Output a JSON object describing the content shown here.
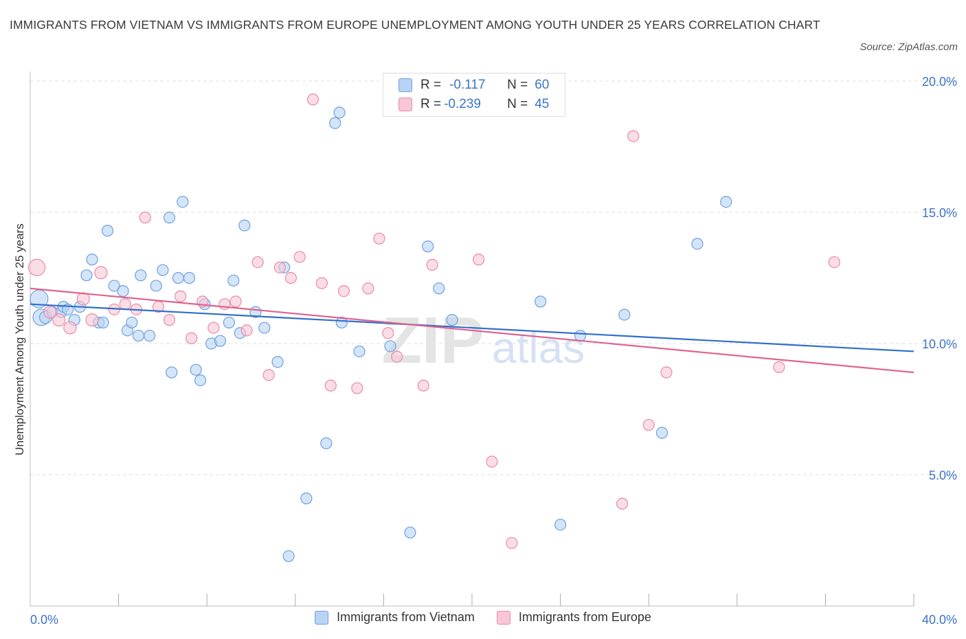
{
  "title": "IMMIGRANTS FROM VIETNAM VS IMMIGRANTS FROM EUROPE UNEMPLOYMENT AMONG YOUTH UNDER 25 YEARS CORRELATION CHART",
  "source": "Source: ZipAtlas.com",
  "watermark": {
    "zip": "ZIP",
    "atlas": "atlas"
  },
  "legend_top": [
    {
      "r_label": "R =",
      "r_value": "-0.117",
      "n_label": "N =",
      "n_value": "60"
    },
    {
      "r_label": "R =",
      "r_value": "-0.239",
      "n_label": "N =",
      "n_value": "45"
    }
  ],
  "colors": {
    "vietnam_fill": "#b8d3f5",
    "vietnam_stroke": "#6f9fdc",
    "vietnam_line": "#2f6fcc",
    "europe_fill": "#f8c6d6",
    "europe_stroke": "#e88aa8",
    "europe_line": "#e0628f",
    "axis_text": "#3b74c8",
    "grid": "#dddddd"
  },
  "chart_data": {
    "type": "scatter",
    "xlabel": "",
    "ylabel": "Unemployment Among Youth under 25 years",
    "xlim": [
      0,
      40
    ],
    "ylim": [
      0,
      20
    ],
    "x_tick_labels": [
      "0.0%",
      "40.0%"
    ],
    "y_ticks": [
      5,
      10,
      15,
      20
    ],
    "y_tick_labels": [
      "5.0%",
      "10.0%",
      "15.0%",
      "20.0%"
    ],
    "grid": true,
    "legend_position": "top-center",
    "series": [
      {
        "name": "Immigrants from Vietnam",
        "trend": {
          "x0": 0,
          "y0": 11.5,
          "x1": 40,
          "y1": 9.7
        },
        "points": [
          [
            0.4,
            11.7,
            13
          ],
          [
            0.5,
            11.0,
            12
          ],
          [
            0.7,
            11.0,
            9
          ],
          [
            1.0,
            11.2,
            8
          ],
          [
            1.4,
            11.2,
            8
          ],
          [
            1.5,
            11.4,
            8
          ],
          [
            2.0,
            10.9,
            8
          ],
          [
            2.25,
            11.4,
            8
          ],
          [
            2.55,
            12.6,
            8
          ],
          [
            2.8,
            13.2,
            8
          ],
          [
            3.1,
            10.8,
            8
          ],
          [
            3.3,
            10.8,
            8
          ],
          [
            3.5,
            14.3,
            8
          ],
          [
            3.8,
            12.2,
            8
          ],
          [
            4.2,
            12.0,
            8
          ],
          [
            4.4,
            10.5,
            8
          ],
          [
            4.6,
            10.8,
            8
          ],
          [
            4.9,
            10.3,
            8
          ],
          [
            5.0,
            12.6,
            8
          ],
          [
            5.4,
            10.3,
            8
          ],
          [
            5.7,
            12.2,
            8
          ],
          [
            6.0,
            12.8,
            8
          ],
          [
            6.3,
            14.8,
            8
          ],
          [
            6.4,
            8.9,
            8
          ],
          [
            6.7,
            12.5,
            8
          ],
          [
            6.9,
            15.4,
            8
          ],
          [
            7.2,
            12.5,
            8
          ],
          [
            7.5,
            9.0,
            8
          ],
          [
            7.7,
            8.6,
            8
          ],
          [
            7.9,
            11.5,
            8
          ],
          [
            8.2,
            10.0,
            8
          ],
          [
            8.6,
            10.1,
            8
          ],
          [
            9.0,
            10.8,
            8
          ],
          [
            9.2,
            12.4,
            8
          ],
          [
            9.5,
            10.4,
            8
          ],
          [
            9.7,
            14.5,
            8
          ],
          [
            10.2,
            11.2,
            8
          ],
          [
            10.6,
            10.6,
            8
          ],
          [
            11.2,
            9.3,
            8
          ],
          [
            11.5,
            12.9,
            8
          ],
          [
            11.7,
            1.9,
            8
          ],
          [
            12.5,
            4.1,
            8
          ],
          [
            13.4,
            6.2,
            8
          ],
          [
            13.8,
            18.4,
            8
          ],
          [
            14.0,
            18.8,
            8
          ],
          [
            14.1,
            10.8,
            8
          ],
          [
            14.9,
            9.7,
            8
          ],
          [
            16.3,
            9.9,
            8
          ],
          [
            17.2,
            2.8,
            8
          ],
          [
            18.0,
            13.7,
            8
          ],
          [
            18.5,
            12.1,
            8
          ],
          [
            19.1,
            10.9,
            8
          ],
          [
            23.1,
            11.6,
            8
          ],
          [
            24.0,
            3.1,
            8
          ],
          [
            24.9,
            10.3,
            8
          ],
          [
            26.9,
            11.1,
            8
          ],
          [
            28.6,
            6.6,
            8
          ],
          [
            30.2,
            13.8,
            8
          ],
          [
            31.5,
            15.4,
            8
          ],
          [
            1.7,
            11.3,
            8
          ]
        ]
      },
      {
        "name": "Immigrants from Europe",
        "trend": {
          "x0": 0,
          "y0": 12.1,
          "x1": 40,
          "y1": 8.9
        },
        "points": [
          [
            0.3,
            12.9,
            12
          ],
          [
            0.9,
            11.2,
            9
          ],
          [
            1.3,
            10.9,
            9
          ],
          [
            1.8,
            10.6,
            9
          ],
          [
            2.4,
            11.7,
            9
          ],
          [
            2.8,
            10.9,
            9
          ],
          [
            3.2,
            12.7,
            9
          ],
          [
            3.8,
            11.3,
            8
          ],
          [
            4.3,
            11.5,
            8
          ],
          [
            4.8,
            11.3,
            8
          ],
          [
            5.2,
            14.8,
            8
          ],
          [
            5.8,
            11.4,
            8
          ],
          [
            6.3,
            10.9,
            8
          ],
          [
            6.8,
            11.8,
            8
          ],
          [
            7.3,
            10.2,
            8
          ],
          [
            7.8,
            11.6,
            8
          ],
          [
            8.3,
            10.6,
            8
          ],
          [
            8.8,
            11.5,
            8
          ],
          [
            9.3,
            11.6,
            8
          ],
          [
            9.8,
            10.5,
            8
          ],
          [
            10.3,
            13.1,
            8
          ],
          [
            10.8,
            8.8,
            8
          ],
          [
            11.3,
            12.9,
            8
          ],
          [
            11.8,
            12.5,
            8
          ],
          [
            12.2,
            13.3,
            8
          ],
          [
            12.8,
            19.3,
            8
          ],
          [
            13.2,
            12.3,
            8
          ],
          [
            13.6,
            8.4,
            8
          ],
          [
            14.2,
            12.0,
            8
          ],
          [
            14.8,
            8.3,
            8
          ],
          [
            15.3,
            12.1,
            8
          ],
          [
            15.8,
            14.0,
            8
          ],
          [
            16.2,
            10.4,
            8
          ],
          [
            16.6,
            9.5,
            8
          ],
          [
            17.8,
            8.4,
            8
          ],
          [
            18.2,
            13.0,
            8
          ],
          [
            20.3,
            13.2,
            8
          ],
          [
            20.9,
            5.5,
            8
          ],
          [
            21.8,
            2.4,
            8
          ],
          [
            26.8,
            3.9,
            8
          ],
          [
            27.3,
            17.9,
            8
          ],
          [
            28.0,
            6.9,
            8
          ],
          [
            28.8,
            8.9,
            8
          ],
          [
            33.9,
            9.1,
            8
          ],
          [
            36.4,
            13.1,
            8
          ]
        ]
      }
    ]
  }
}
